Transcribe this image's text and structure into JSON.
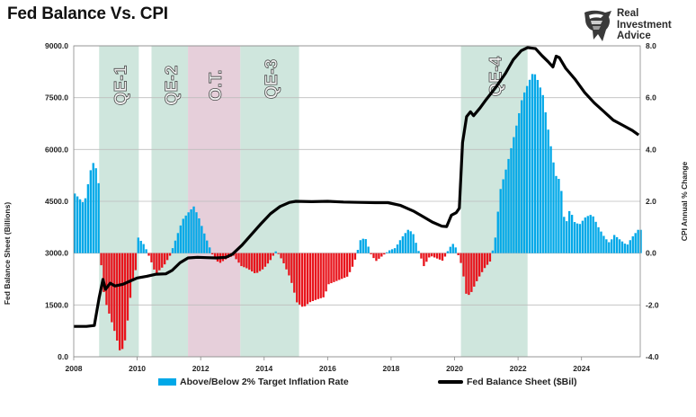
{
  "header": {
    "title": "Fed Balance Vs. CPI"
  },
  "brand": {
    "lines": [
      "Real",
      "Investment",
      "Advice"
    ],
    "icon": "eagle-icon"
  },
  "colors": {
    "above": "#00a8e8",
    "below": "#e8141c",
    "line": "#000000",
    "qe_shade": "#cfe6dd",
    "qt_shade": "#e6cfda",
    "grid": "#bdbdbd",
    "shade_label": "#f2f2f2"
  },
  "chart_data": {
    "type": "bar",
    "title": "Fed Balance Vs. CPI",
    "xlabel": "",
    "ylabel_left": "Fed Balance Sheet (Billions)",
    "ylabel_right": "CPI Annual % Change",
    "x_range": [
      2008,
      2025.85
    ],
    "ylim_left": [
      0,
      9000
    ],
    "ylim_right": [
      -4,
      8
    ],
    "grid": true,
    "legend_position": "bottom",
    "x_ticks": [
      2008,
      2010,
      2012,
      2014,
      2016,
      2018,
      2020,
      2022,
      2024
    ],
    "x_tick_labels": [
      "2008",
      "2010",
      "2012",
      "2014",
      "2016",
      "2018",
      "2020",
      "2022",
      "2024"
    ],
    "y_left_ticks": [
      0,
      1500,
      3000,
      4500,
      6000,
      7500,
      9000
    ],
    "y_left_tick_labels": [
      "0.0",
      "1500.0",
      "3000.0",
      "4500.0",
      "6000.0",
      "7500.0",
      "9000.0"
    ],
    "y_right_ticks": [
      -4,
      -2,
      0,
      2,
      4,
      6,
      8
    ],
    "y_right_tick_labels": [
      "-4.0",
      "-2.0",
      "0.0",
      "2.0",
      "4.0",
      "6.0",
      "8.0"
    ],
    "shaded_regions": [
      {
        "label": "QE-1",
        "start": 2008.8,
        "end": 2010.05,
        "kind": "qe"
      },
      {
        "label": "QE-2",
        "start": 2010.45,
        "end": 2011.6,
        "kind": "qe"
      },
      {
        "label": "O.T.",
        "start": 2011.6,
        "end": 2013.25,
        "kind": "qt"
      },
      {
        "label": "QE-3",
        "start": 2013.25,
        "end": 2015.1,
        "kind": "qe"
      },
      {
        "label": "QE-4",
        "start": 2020.2,
        "end": 2022.3,
        "kind": "qe"
      }
    ],
    "series": [
      {
        "name": "Above/Below 2% Target Inflation Rate",
        "axis": "right",
        "style": "bar",
        "points": [
          [
            2008.0,
            2.3
          ],
          [
            2008.3,
            1.9
          ],
          [
            2008.5,
            3.2
          ],
          [
            2008.62,
            3.6
          ],
          [
            2008.75,
            2.7
          ],
          [
            2008.85,
            -1.1
          ],
          [
            2009.0,
            -2.0
          ],
          [
            2009.25,
            -3.0
          ],
          [
            2009.45,
            -3.9
          ],
          [
            2009.6,
            -3.3
          ],
          [
            2009.8,
            -1.2
          ],
          [
            2009.95,
            -0.5
          ],
          [
            2010.0,
            0.6
          ],
          [
            2010.2,
            0.3
          ],
          [
            2010.4,
            -0.3
          ],
          [
            2010.55,
            -0.8
          ],
          [
            2010.8,
            -0.5
          ],
          [
            2011.0,
            -0.1
          ],
          [
            2011.2,
            0.6
          ],
          [
            2011.4,
            1.3
          ],
          [
            2011.6,
            1.6
          ],
          [
            2011.75,
            1.8
          ],
          [
            2011.9,
            1.4
          ],
          [
            2012.1,
            0.7
          ],
          [
            2012.35,
            -0.1
          ],
          [
            2012.55,
            -0.4
          ],
          [
            2012.8,
            -0.2
          ],
          [
            2013.0,
            -0.1
          ],
          [
            2013.25,
            -0.5
          ],
          [
            2013.45,
            -0.6
          ],
          [
            2013.7,
            -0.8
          ],
          [
            2013.95,
            -0.6
          ],
          [
            2014.15,
            -0.3
          ],
          [
            2014.35,
            0.1
          ],
          [
            2014.55,
            -0.3
          ],
          [
            2014.8,
            -1.0
          ],
          [
            2015.0,
            -1.9
          ],
          [
            2015.2,
            -2.1
          ],
          [
            2015.4,
            -1.9
          ],
          [
            2015.6,
            -1.8
          ],
          [
            2015.85,
            -1.7
          ],
          [
            2016.0,
            -1.2
          ],
          [
            2016.2,
            -1.1
          ],
          [
            2016.4,
            -1.0
          ],
          [
            2016.6,
            -0.9
          ],
          [
            2016.8,
            -0.4
          ],
          [
            2017.0,
            0.5
          ],
          [
            2017.15,
            0.6
          ],
          [
            2017.35,
            -0.1
          ],
          [
            2017.5,
            -0.3
          ],
          [
            2017.7,
            -0.1
          ],
          [
            2017.9,
            0.1
          ],
          [
            2018.1,
            0.2
          ],
          [
            2018.3,
            0.6
          ],
          [
            2018.5,
            0.9
          ],
          [
            2018.65,
            0.8
          ],
          [
            2018.8,
            0.2
          ],
          [
            2019.0,
            -0.5
          ],
          [
            2019.2,
            -0.1
          ],
          [
            2019.4,
            -0.2
          ],
          [
            2019.6,
            -0.3
          ],
          [
            2019.8,
            0.2
          ],
          [
            2019.95,
            0.4
          ],
          [
            2020.2,
            -0.5
          ],
          [
            2020.35,
            -1.7
          ],
          [
            2020.5,
            -1.5
          ],
          [
            2020.7,
            -1.0
          ],
          [
            2020.9,
            -0.6
          ],
          [
            2021.1,
            -0.3
          ],
          [
            2021.25,
            0.6
          ],
          [
            2021.4,
            2.4
          ],
          [
            2021.6,
            3.3
          ],
          [
            2021.8,
            4.3
          ],
          [
            2021.95,
            5.1
          ],
          [
            2022.1,
            6.0
          ],
          [
            2022.3,
            6.6
          ],
          [
            2022.45,
            7.0
          ],
          [
            2022.55,
            6.8
          ],
          [
            2022.75,
            6.1
          ],
          [
            2022.95,
            4.5
          ],
          [
            2023.15,
            3.0
          ],
          [
            2023.3,
            2.8
          ],
          [
            2023.45,
            1.0
          ],
          [
            2023.6,
            1.7
          ],
          [
            2023.75,
            1.2
          ],
          [
            2023.9,
            1.1
          ],
          [
            2024.1,
            1.4
          ],
          [
            2024.3,
            1.5
          ],
          [
            2024.5,
            1.0
          ],
          [
            2024.7,
            0.6
          ],
          [
            2024.85,
            0.4
          ],
          [
            2025.0,
            0.7
          ],
          [
            2025.2,
            0.5
          ],
          [
            2025.4,
            0.3
          ],
          [
            2025.55,
            0.6
          ],
          [
            2025.75,
            0.9
          ]
        ]
      },
      {
        "name": "Fed Balance Sheet ($Bil)",
        "axis": "left",
        "style": "line",
        "points": [
          [
            2008.0,
            880
          ],
          [
            2008.4,
            880
          ],
          [
            2008.65,
            905
          ],
          [
            2008.8,
            1700
          ],
          [
            2008.92,
            2240
          ],
          [
            2009.0,
            1950
          ],
          [
            2009.15,
            2130
          ],
          [
            2009.3,
            2050
          ],
          [
            2009.55,
            2100
          ],
          [
            2009.8,
            2200
          ],
          [
            2010.0,
            2280
          ],
          [
            2010.3,
            2330
          ],
          [
            2010.6,
            2390
          ],
          [
            2010.9,
            2400
          ],
          [
            2011.1,
            2500
          ],
          [
            2011.35,
            2720
          ],
          [
            2011.6,
            2860
          ],
          [
            2011.9,
            2880
          ],
          [
            2012.2,
            2870
          ],
          [
            2012.5,
            2860
          ],
          [
            2012.8,
            2880
          ],
          [
            2013.0,
            2970
          ],
          [
            2013.3,
            3230
          ],
          [
            2013.6,
            3540
          ],
          [
            2013.9,
            3850
          ],
          [
            2014.2,
            4140
          ],
          [
            2014.5,
            4350
          ],
          [
            2014.8,
            4470
          ],
          [
            2015.0,
            4500
          ],
          [
            2015.5,
            4490
          ],
          [
            2016.0,
            4500
          ],
          [
            2016.5,
            4480
          ],
          [
            2017.0,
            4470
          ],
          [
            2017.5,
            4460
          ],
          [
            2017.9,
            4460
          ],
          [
            2018.3,
            4380
          ],
          [
            2018.7,
            4220
          ],
          [
            2019.0,
            4060
          ],
          [
            2019.3,
            3900
          ],
          [
            2019.6,
            3780
          ],
          [
            2019.75,
            3770
          ],
          [
            2019.9,
            4100
          ],
          [
            2020.05,
            4170
          ],
          [
            2020.15,
            4300
          ],
          [
            2020.25,
            6200
          ],
          [
            2020.38,
            6950
          ],
          [
            2020.5,
            7090
          ],
          [
            2020.6,
            6980
          ],
          [
            2020.8,
            7200
          ],
          [
            2021.0,
            7450
          ],
          [
            2021.3,
            7800
          ],
          [
            2021.6,
            8200
          ],
          [
            2021.85,
            8600
          ],
          [
            2022.1,
            8860
          ],
          [
            2022.3,
            8950
          ],
          [
            2022.55,
            8920
          ],
          [
            2022.75,
            8720
          ],
          [
            2022.95,
            8540
          ],
          [
            2023.1,
            8390
          ],
          [
            2023.2,
            8700
          ],
          [
            2023.3,
            8660
          ],
          [
            2023.5,
            8350
          ],
          [
            2023.8,
            8030
          ],
          [
            2024.1,
            7650
          ],
          [
            2024.4,
            7350
          ],
          [
            2024.7,
            7100
          ],
          [
            2025.0,
            6850
          ],
          [
            2025.3,
            6700
          ],
          [
            2025.6,
            6550
          ],
          [
            2025.8,
            6420
          ]
        ]
      }
    ]
  }
}
